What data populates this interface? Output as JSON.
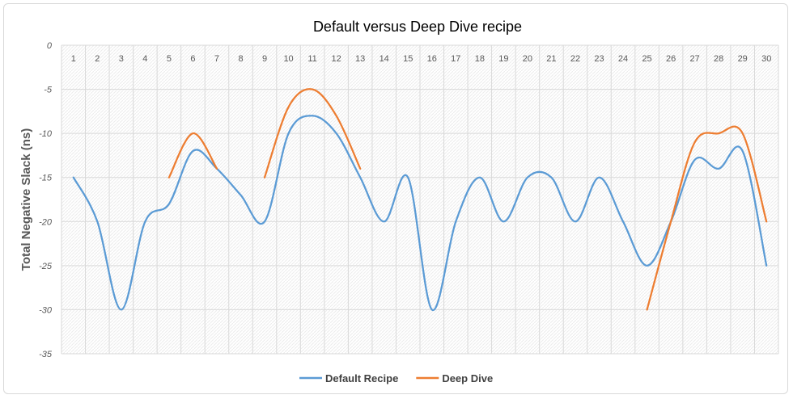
{
  "chart_data": {
    "type": "line",
    "title": "Default versus Deep Dive recipe",
    "xlabel": "",
    "ylabel": "Total Negative Slack (ns)",
    "x": [
      1,
      2,
      3,
      4,
      5,
      6,
      7,
      8,
      9,
      10,
      11,
      12,
      13,
      14,
      15,
      16,
      17,
      18,
      19,
      20,
      21,
      22,
      23,
      24,
      25,
      26,
      27,
      28,
      29,
      30
    ],
    "ylim": [
      -35,
      0
    ],
    "yticks": [
      0,
      -5,
      -10,
      -15,
      -20,
      -25,
      -30,
      -35
    ],
    "grid": true,
    "legend_position": "bottom",
    "series": [
      {
        "name": "Default Recipe",
        "color": "#5b9bd5",
        "values": [
          -15,
          -20,
          -30,
          -20,
          -18,
          -12,
          -14,
          -17,
          -20,
          -10,
          -8,
          -10,
          -15,
          -20,
          -15,
          -30,
          -20,
          -15,
          -20,
          -15,
          -15,
          -20,
          -15,
          -20,
          -25,
          -20,
          -13,
          -14,
          -12,
          -25
        ]
      },
      {
        "name": "Deep Dive",
        "color": "#ed7d31",
        "values": [
          null,
          null,
          null,
          null,
          -15,
          -10,
          -14,
          null,
          -15,
          -7,
          -5,
          -8,
          -14,
          null,
          null,
          null,
          null,
          null,
          null,
          null,
          null,
          null,
          null,
          null,
          -30,
          -20,
          -11,
          -10,
          -10,
          -20
        ]
      }
    ]
  }
}
